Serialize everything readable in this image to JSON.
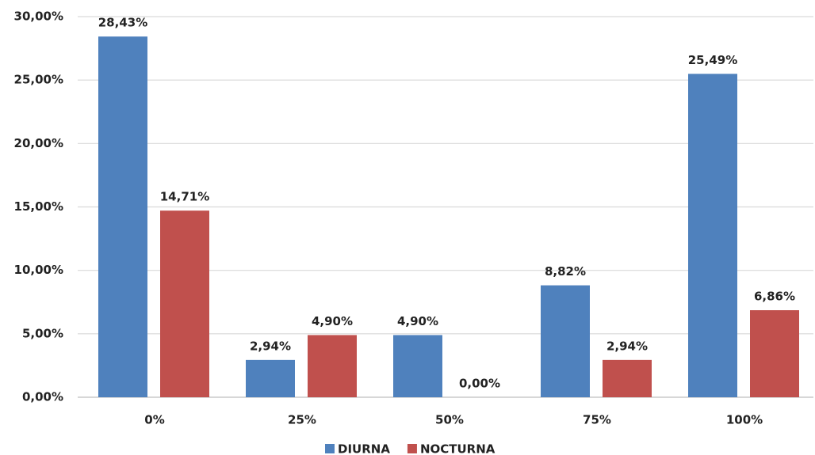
{
  "chart_data": {
    "type": "bar",
    "categories": [
      "0%",
      "25%",
      "50%",
      "75%",
      "100%"
    ],
    "series": [
      {
        "name": "DIURNA",
        "color": "#4f81bd",
        "values": [
          28.43,
          2.94,
          4.9,
          8.82,
          25.49
        ],
        "value_labels": [
          "28,43%",
          "2,94%",
          "4,90%",
          "8,82%",
          "25,49%"
        ]
      },
      {
        "name": "NOCTURNA",
        "color": "#c0504d",
        "values": [
          14.71,
          4.9,
          0.0,
          2.94,
          6.86
        ],
        "value_labels": [
          "14,71%",
          "4,90%",
          "0,00%",
          "2,94%",
          "6,86%"
        ]
      }
    ],
    "ylim": [
      0,
      30
    ],
    "yticks": [
      {
        "value": 0,
        "label": "0,00%"
      },
      {
        "value": 5,
        "label": "5,00%"
      },
      {
        "value": 10,
        "label": "10,00%"
      },
      {
        "value": 15,
        "label": "15,00%"
      },
      {
        "value": 20,
        "label": "20,00%"
      },
      {
        "value": 25,
        "label": "25,00%"
      },
      {
        "value": 30,
        "label": "30,00%"
      }
    ],
    "grid": true,
    "legend": "bottom"
  }
}
